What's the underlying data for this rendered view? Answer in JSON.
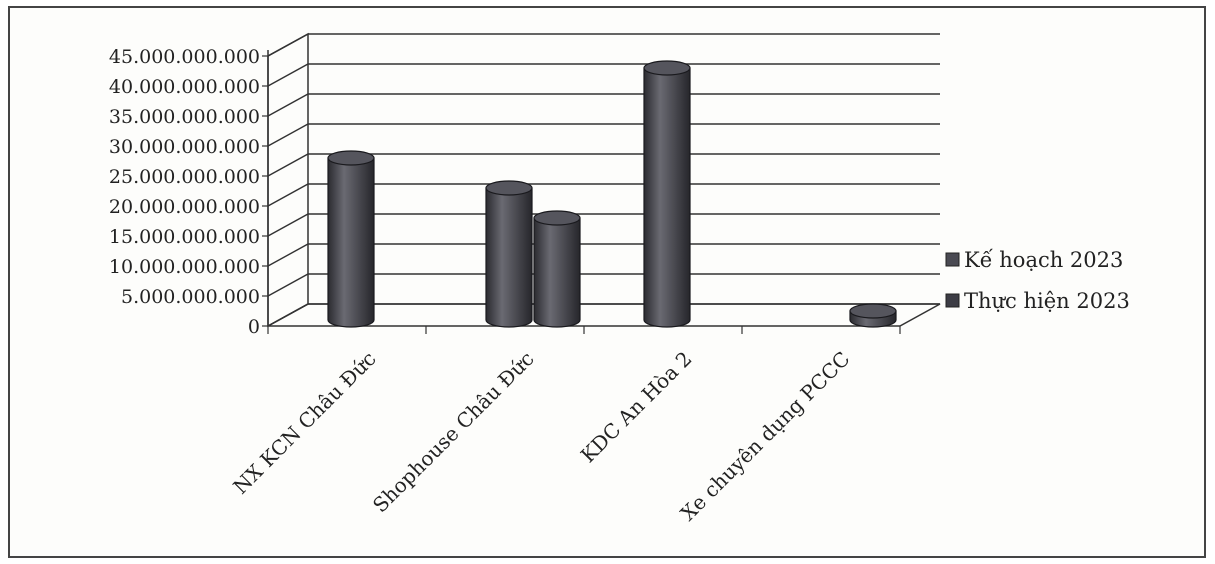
{
  "chart_data": {
    "type": "bar",
    "style": "3d-cylinder",
    "categories": [
      "NX KCN Châu Đức",
      "Shophouse Châu Đức",
      "KDC An Hòa 2",
      "Xe chuyên dụng PCCC"
    ],
    "series": [
      {
        "name": "Kế hoạch 2023",
        "values": [
          27000000000,
          22000000000,
          42000000000,
          0
        ],
        "color": "#4a4a52"
      },
      {
        "name": "Thực hiện 2023",
        "values": [
          0,
          17000000000,
          0,
          1500000000
        ],
        "color": "#3c3c44"
      }
    ],
    "y_ticks": [
      "45.000.000.000",
      "40.000.000.000",
      "35.000.000.000",
      "30.000.000.000",
      "25.000.000.000",
      "20.000.000.000",
      "15.000.000.000",
      "10.000.000.000",
      "5.000.000.000",
      "0"
    ],
    "ylim": [
      0,
      45000000000
    ],
    "grid": true,
    "legend_position": "right",
    "title": "",
    "xlabel": "",
    "ylabel": ""
  }
}
